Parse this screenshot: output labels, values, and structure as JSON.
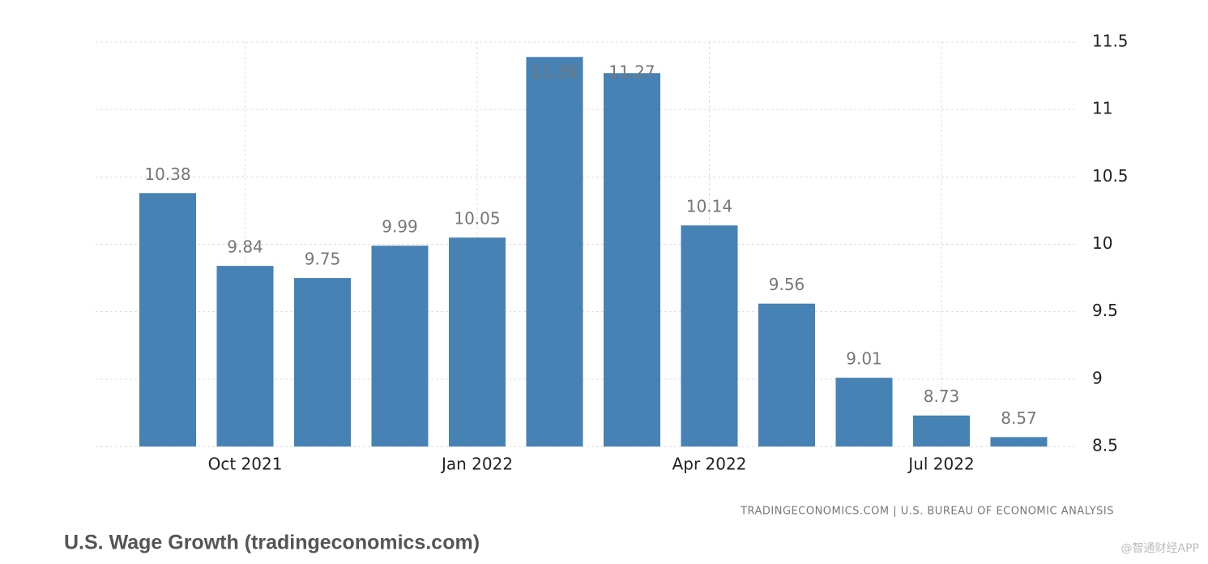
{
  "chart_data": {
    "type": "bar",
    "categories": [
      null,
      "Oct 2021",
      null,
      null,
      "Jan 2022",
      null,
      null,
      "Apr 2022",
      null,
      null,
      "Jul 2022",
      null
    ],
    "values": [
      10.38,
      9.84,
      9.75,
      9.99,
      10.05,
      11.39,
      11.27,
      10.14,
      9.56,
      9.01,
      8.73,
      8.57
    ],
    "color": "#4682b4",
    "ylim": [
      8.5,
      11.5
    ],
    "yticks": [
      8.5,
      9,
      9.5,
      10,
      10.5,
      11,
      11.5
    ],
    "grid": true,
    "source": "TRADINGECONOMICS.COM | U.S. BUREAU OF ECONOMIC ANALYSIS"
  },
  "caption": "U.S. Wage Growth (tradingeconomics.com)",
  "watermark": "@智通财经APP"
}
